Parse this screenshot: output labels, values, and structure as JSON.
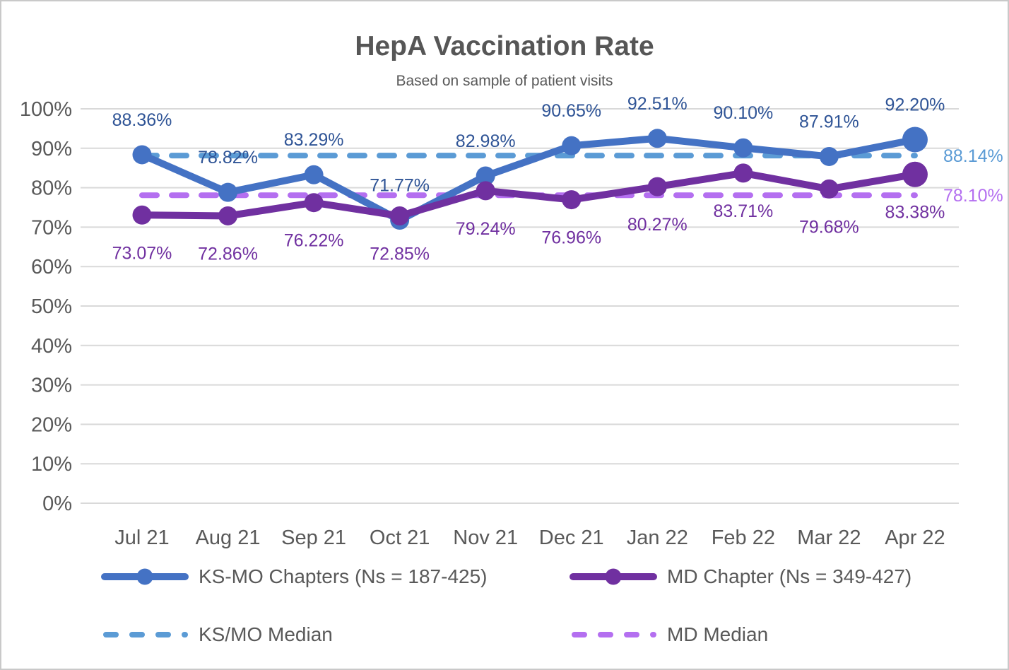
{
  "chart_data": {
    "type": "line",
    "title": "HepA Vaccination Rate",
    "subtitle": "Based on sample of patient visits",
    "categories": [
      "Jul 21",
      "Aug 21",
      "Sep 21",
      "Oct 21",
      "Nov 21",
      "Dec 21",
      "Jan 22",
      "Feb 22",
      "Mar 22",
      "Apr 22"
    ],
    "series": [
      {
        "name": "KS-MO Chapters (Ns = 187-425)",
        "type": "line",
        "values": [
          88.36,
          78.82,
          83.29,
          71.77,
          82.98,
          90.65,
          92.51,
          90.1,
          87.91,
          92.2
        ],
        "labels": [
          "88.36%",
          "78.82%",
          "83.29%",
          "71.77%",
          "82.98%",
          "90.65%",
          "92.51%",
          "90.10%",
          "87.91%",
          "92.20%"
        ],
        "color": "#4472C4",
        "label_color": "#2F5496",
        "label_position": "above"
      },
      {
        "name": "MD Chapter (Ns = 349-427)",
        "type": "line",
        "values": [
          73.07,
          72.86,
          76.22,
          72.85,
          79.24,
          76.96,
          80.27,
          83.71,
          79.68,
          83.38
        ],
        "labels": [
          "73.07%",
          "72.86%",
          "76.22%",
          "72.85%",
          "79.24%",
          "76.96%",
          "80.27%",
          "83.71%",
          "79.68%",
          "83.38%"
        ],
        "color": "#7030A0",
        "label_color": "#7030A0",
        "label_position": "below"
      },
      {
        "name": "KS/MO Median",
        "type": "median",
        "value": 88.14,
        "end_label": "88.14%",
        "color": "#5B9BD5"
      },
      {
        "name": "MD Median",
        "type": "median",
        "value": 78.1,
        "end_label": "78.10%",
        "color": "#B46FF0"
      }
    ],
    "ylim": [
      0,
      100
    ],
    "ytick_step": 10,
    "ytick_labels": [
      "0%",
      "10%",
      "20%",
      "30%",
      "40%",
      "50%",
      "60%",
      "70%",
      "80%",
      "90%",
      "100%"
    ],
    "grid": true,
    "legend_position": "bottom",
    "colors": {
      "grid": "#D9D9D9",
      "axis_text": "#595959",
      "title_text": "#565656"
    }
  }
}
